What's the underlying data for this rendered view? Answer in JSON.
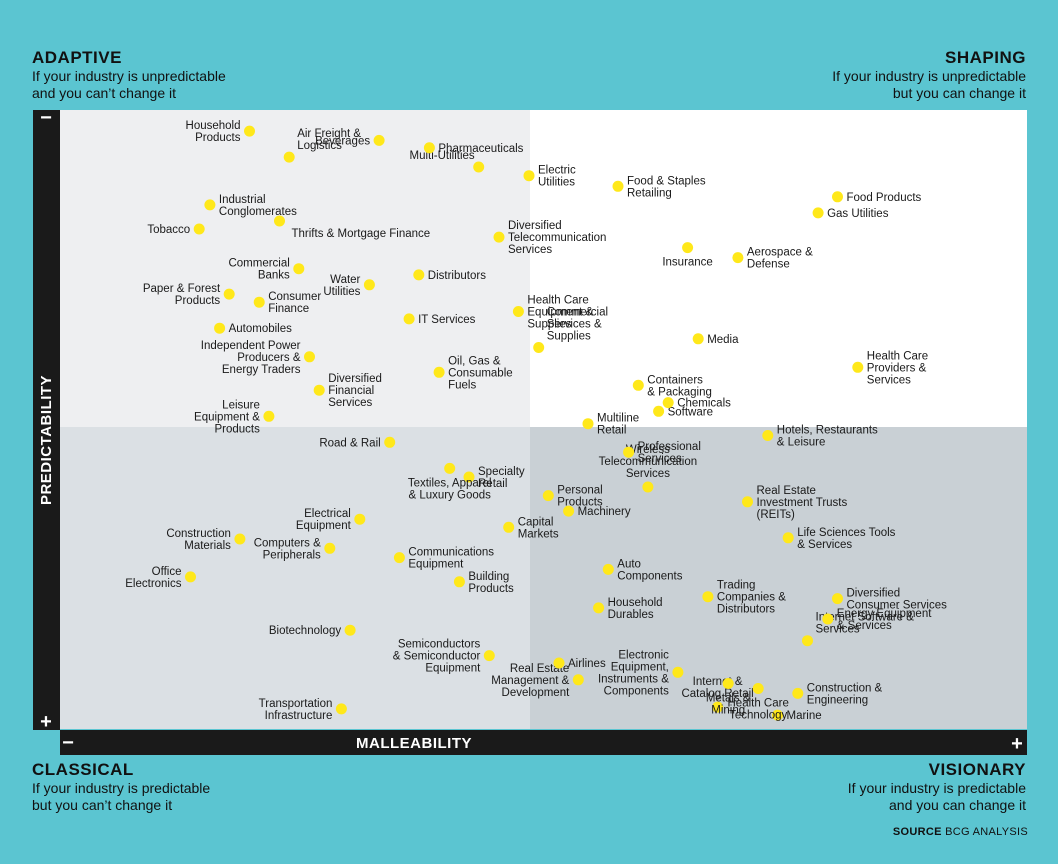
{
  "colors": {
    "background": "#5bc5d1",
    "dot": "#ffe81a",
    "axis_bar": "#1a1a1a"
  },
  "quadrants": {
    "adaptive": {
      "title": "ADAPTIVE",
      "line1": "If your industry is unpredictable",
      "line2": "and you can’t change it"
    },
    "shaping": {
      "title": "SHAPING",
      "line1": "If your industry is unpredictable",
      "line2": "but you can change it"
    },
    "classical": {
      "title": "CLASSICAL",
      "line1": "If your industry is predictable",
      "line2": "but you can’t change it"
    },
    "visionary": {
      "title": "VISIONARY",
      "line1": "If your industry is predictable",
      "line2": "and you can change it"
    }
  },
  "source": {
    "label": "SOURCE",
    "text": "BCG ANALYSIS"
  },
  "chart_data": {
    "type": "scatter",
    "title": "",
    "xlabel": "MALLEABILITY",
    "ylabel": "PREDICTABILITY",
    "x_axis_ends": {
      "low": "−",
      "high": "+"
    },
    "y_axis_ends": {
      "low": "+",
      "high": "−"
    },
    "xlim": [
      0,
      100
    ],
    "ylim": [
      0,
      100
    ],
    "y_direction": "predictability increases downward",
    "quadrant_split": {
      "x": 48.9,
      "y": 51.3
    },
    "points": [
      {
        "name": "Transportation Infrastructure",
        "lines": [
          "Transportation",
          "Infrastructure"
        ],
        "x": 29.1,
        "y": 96.6,
        "label_side": "left"
      },
      {
        "name": "Biotechnology",
        "lines": [
          "Biotechnology"
        ],
        "x": 30.0,
        "y": 83.9,
        "label_side": "left"
      },
      {
        "name": "Office Electronics",
        "lines": [
          "Office",
          "Electronics"
        ],
        "x": 13.5,
        "y": 75.3,
        "label_side": "left"
      },
      {
        "name": "Computers & Peripherals",
        "lines": [
          "Computers &",
          "Peripherals"
        ],
        "x": 27.9,
        "y": 70.7,
        "label_side": "left"
      },
      {
        "name": "Construction Materials",
        "lines": [
          "Construction",
          "Materials"
        ],
        "x": 18.6,
        "y": 69.2,
        "label_side": "left"
      },
      {
        "name": "Electrical Equipment",
        "lines": [
          "Electrical",
          "Equipment"
        ],
        "x": 31.0,
        "y": 66.0,
        "label_side": "left"
      },
      {
        "name": "Semiconductors & Semiconductor Equipment",
        "lines": [
          "Semiconductors",
          "& Semiconductor",
          "Equipment"
        ],
        "x": 44.4,
        "y": 88.0,
        "label_side": "left"
      },
      {
        "name": "Building Products",
        "lines": [
          "Building",
          "Products"
        ],
        "x": 41.3,
        "y": 76.1,
        "label_side": "right"
      },
      {
        "name": "Communications Equipment",
        "lines": [
          "Communications",
          "Equipment"
        ],
        "x": 35.1,
        "y": 72.2,
        "label_side": "right"
      },
      {
        "name": "Real Estate Management & Development",
        "lines": [
          "Real Estate",
          "Management &",
          "Development"
        ],
        "x": 53.6,
        "y": 91.9,
        "label_side": "left"
      },
      {
        "name": "Airlines",
        "lines": [
          "Airlines"
        ],
        "x": 51.6,
        "y": 89.2,
        "label_side": "right"
      },
      {
        "name": "Capital Markets",
        "lines": [
          "Capital",
          "Markets"
        ],
        "x": 46.4,
        "y": 67.3,
        "label_side": "right"
      },
      {
        "name": "Specialty Retail",
        "lines": [
          "Specialty",
          "Retail"
        ],
        "x": 42.3,
        "y": 59.2,
        "label_side": "right"
      },
      {
        "name": "Textiles, Apparel & Luxury Goods",
        "lines": [
          "Textiles, Apparel",
          "& Luxury Goods"
        ],
        "x": 40.3,
        "y": 57.8,
        "label_side": "below"
      },
      {
        "name": "Road & Rail",
        "lines": [
          "Road & Rail"
        ],
        "x": 34.1,
        "y": 53.6,
        "label_side": "left"
      },
      {
        "name": "Internet & Catalog Retail",
        "lines": [
          "Internet &",
          "Catalog Retail"
        ],
        "x": 68.0,
        "y": 96.3,
        "label_side": "above"
      },
      {
        "name": "Electronic Equipment, Instruments & Components",
        "lines": [
          "Electronic",
          "Equipment,",
          "Instruments &",
          "Components"
        ],
        "x": 63.9,
        "y": 90.7,
        "label_side": "left"
      },
      {
        "name": "Metals & Mining",
        "lines": [
          "Metals &",
          "Mining"
        ],
        "x": 69.1,
        "y": 92.5,
        "label_side": "below"
      },
      {
        "name": "Marine",
        "lines": [
          "Marine"
        ],
        "x": 74.2,
        "y": 97.6,
        "label_side": "right"
      },
      {
        "name": "Construction & Engineering",
        "lines": [
          "Construction &",
          "Engineering"
        ],
        "x": 76.3,
        "y": 94.1,
        "label_side": "right"
      },
      {
        "name": "Health Care Technology",
        "lines": [
          "Health Care",
          "Technology"
        ],
        "x": 72.2,
        "y": 93.3,
        "label_side": "below"
      },
      {
        "name": "Internet Software & Services",
        "lines": [
          "Internet Software &",
          "Services"
        ],
        "x": 77.3,
        "y": 85.6,
        "label_side": "above-right"
      },
      {
        "name": "Energy Equipment & Services",
        "lines": [
          "Energy Equipment",
          "& Services"
        ],
        "x": 79.4,
        "y": 82.1,
        "label_side": "right"
      },
      {
        "name": "Diversified Consumer Services",
        "lines": [
          "Diversified",
          "Consumer Services"
        ],
        "x": 80.4,
        "y": 78.8,
        "label_side": "right"
      },
      {
        "name": "Household Durables",
        "lines": [
          "Household",
          "Durables"
        ],
        "x": 55.7,
        "y": 80.3,
        "label_side": "right"
      },
      {
        "name": "Trading Companies & Distributors",
        "lines": [
          "Trading",
          "Companies &",
          "Distributors"
        ],
        "x": 67.0,
        "y": 78.5,
        "label_side": "right"
      },
      {
        "name": "Auto Components",
        "lines": [
          "Auto",
          "Components"
        ],
        "x": 56.7,
        "y": 74.1,
        "label_side": "right"
      },
      {
        "name": "Life Sciences Tools & Services",
        "lines": [
          "Life Sciences Tools",
          "& Services"
        ],
        "x": 75.3,
        "y": 69.0,
        "label_side": "right"
      },
      {
        "name": "Wireless Telecommunication Services",
        "lines": [
          "Wireless",
          "Telecommunication",
          "Services"
        ],
        "x": 60.8,
        "y": 60.8,
        "label_side": "above"
      },
      {
        "name": "Machinery",
        "lines": [
          "Machinery"
        ],
        "x": 52.6,
        "y": 64.7,
        "label_side": "right"
      },
      {
        "name": "Personal Products",
        "lines": [
          "Personal",
          "Products"
        ],
        "x": 50.5,
        "y": 62.2,
        "label_side": "right"
      },
      {
        "name": "Real Estate Investment Trusts (REITs)",
        "lines": [
          "Real Estate",
          "Investment Trusts",
          "(REITs)"
        ],
        "x": 71.1,
        "y": 63.2,
        "label_side": "right"
      },
      {
        "name": "Professional Services",
        "lines": [
          "Professional",
          "Services"
        ],
        "x": 58.8,
        "y": 55.2,
        "label_side": "right"
      },
      {
        "name": "Hotels, Restaurants & Leisure",
        "lines": [
          "Hotels, Restaurants",
          "& Leisure"
        ],
        "x": 73.2,
        "y": 52.5,
        "label_side": "right"
      },
      {
        "name": "Multiline Retail",
        "lines": [
          "Multiline",
          "Retail"
        ],
        "x": 54.6,
        "y": 50.6,
        "label_side": "right"
      },
      {
        "name": "Leisure Equipment & Products",
        "lines": [
          "Leisure",
          "Equipment &",
          "Products"
        ],
        "x": 21.6,
        "y": 49.4,
        "label_side": "left"
      },
      {
        "name": "Software",
        "lines": [
          "Software"
        ],
        "x": 61.9,
        "y": 48.6,
        "label_side": "right"
      },
      {
        "name": "Chemicals",
        "lines": [
          "Chemicals"
        ],
        "x": 62.9,
        "y": 47.2,
        "label_side": "right"
      },
      {
        "name": "Diversified Financial Services",
        "lines": [
          "Diversified",
          "Financial",
          "Services"
        ],
        "x": 26.8,
        "y": 45.2,
        "label_side": "right"
      },
      {
        "name": "Independent Power Producers & Energy Traders",
        "lines": [
          "Independent Power",
          "Producers &",
          "Energy Traders"
        ],
        "x": 25.8,
        "y": 39.8,
        "label_side": "left"
      },
      {
        "name": "Oil, Gas & Consumable Fuels",
        "lines": [
          "Oil, Gas &",
          "Consumable",
          "Fuels"
        ],
        "x": 39.2,
        "y": 42.3,
        "label_side": "right"
      },
      {
        "name": "Commercial Services & Supplies",
        "lines": [
          "Commercial",
          "Services &",
          "Supplies"
        ],
        "x": 49.5,
        "y": 38.3,
        "label_side": "above-right"
      },
      {
        "name": "Containers & Packaging",
        "lines": [
          "Containers",
          "& Packaging"
        ],
        "x": 59.8,
        "y": 44.4,
        "label_side": "right"
      },
      {
        "name": "Health Care Providers & Services",
        "lines": [
          "Health Care",
          "Providers &",
          "Services"
        ],
        "x": 82.5,
        "y": 41.5,
        "label_side": "right"
      },
      {
        "name": "Automobiles",
        "lines": [
          "Automobiles"
        ],
        "x": 16.5,
        "y": 35.2,
        "label_side": "right"
      },
      {
        "name": "IT Services",
        "lines": [
          "IT Services"
        ],
        "x": 36.1,
        "y": 33.7,
        "label_side": "right"
      },
      {
        "name": "Media",
        "lines": [
          "Media"
        ],
        "x": 66.0,
        "y": 36.9,
        "label_side": "right"
      },
      {
        "name": "Health Care Equipment & Supplies",
        "lines": [
          "Health Care",
          "Equipment &",
          "Supplies"
        ],
        "x": 47.4,
        "y": 32.5,
        "label_side": "right"
      },
      {
        "name": "Paper & Forest Products",
        "lines": [
          "Paper & Forest",
          "Products"
        ],
        "x": 17.5,
        "y": 29.7,
        "label_side": "left"
      },
      {
        "name": "Consumer Finance",
        "lines": [
          "Consumer",
          "Finance"
        ],
        "x": 20.6,
        "y": 31.0,
        "label_side": "right"
      },
      {
        "name": "Water Utilities",
        "lines": [
          "Water",
          "Utilities"
        ],
        "x": 32.0,
        "y": 28.2,
        "label_side": "left"
      },
      {
        "name": "Distributors",
        "lines": [
          "Distributors"
        ],
        "x": 37.1,
        "y": 26.6,
        "label_side": "right"
      },
      {
        "name": "Commercial Banks",
        "lines": [
          "Commercial",
          "Banks"
        ],
        "x": 24.7,
        "y": 25.6,
        "label_side": "left"
      },
      {
        "name": "Aerospace & Defense",
        "lines": [
          "Aerospace &",
          "Defense"
        ],
        "x": 70.1,
        "y": 23.8,
        "label_side": "right"
      },
      {
        "name": "Insurance",
        "lines": [
          "Insurance"
        ],
        "x": 64.9,
        "y": 22.2,
        "label_side": "below"
      },
      {
        "name": "Tobacco",
        "lines": [
          "Tobacco"
        ],
        "x": 14.4,
        "y": 19.2,
        "label_side": "left"
      },
      {
        "name": "Diversified Telecommunication Services",
        "lines": [
          "Diversified",
          "Telecommunication",
          "Services"
        ],
        "x": 45.4,
        "y": 20.5,
        "label_side": "right"
      },
      {
        "name": "Thrifts & Mortgage Finance",
        "lines": [
          "Thrifts & Mortgage Finance"
        ],
        "x": 22.7,
        "y": 17.9,
        "label_side": "below-right"
      },
      {
        "name": "Industrial Conglomerates",
        "lines": [
          "Industrial",
          "Conglomerates"
        ],
        "x": 15.5,
        "y": 15.3,
        "label_side": "right"
      },
      {
        "name": "Gas Utilities",
        "lines": [
          "Gas Utilities"
        ],
        "x": 78.4,
        "y": 16.6,
        "label_side": "right"
      },
      {
        "name": "Food Products",
        "lines": [
          "Food Products"
        ],
        "x": 80.4,
        "y": 14.0,
        "label_side": "right"
      },
      {
        "name": "Multi-Utilities",
        "lines": [
          "Multi-Utilities"
        ],
        "x": 43.3,
        "y": 9.2,
        "label_side": "above-left"
      },
      {
        "name": "Electric Utilities",
        "lines": [
          "Electric",
          "Utilities"
        ],
        "x": 48.5,
        "y": 10.6,
        "label_side": "right"
      },
      {
        "name": "Food & Staples Retailing",
        "lines": [
          "Food & Staples",
          "Retailing"
        ],
        "x": 57.7,
        "y": 12.3,
        "label_side": "right"
      },
      {
        "name": "Air Freight & Logistics",
        "lines": [
          "Air Freight &",
          "Logistics"
        ],
        "x": 23.7,
        "y": 7.6,
        "label_side": "above-right"
      },
      {
        "name": "Pharmaceuticals",
        "lines": [
          "Pharmaceuticals"
        ],
        "x": 38.2,
        "y": 6.1,
        "label_side": "right"
      },
      {
        "name": "Beverages",
        "lines": [
          "Beverages"
        ],
        "x": 33.0,
        "y": 4.9,
        "label_side": "left"
      },
      {
        "name": "Household Products",
        "lines": [
          "Household",
          "Products"
        ],
        "x": 19.6,
        "y": 3.4,
        "label_side": "left"
      }
    ]
  }
}
